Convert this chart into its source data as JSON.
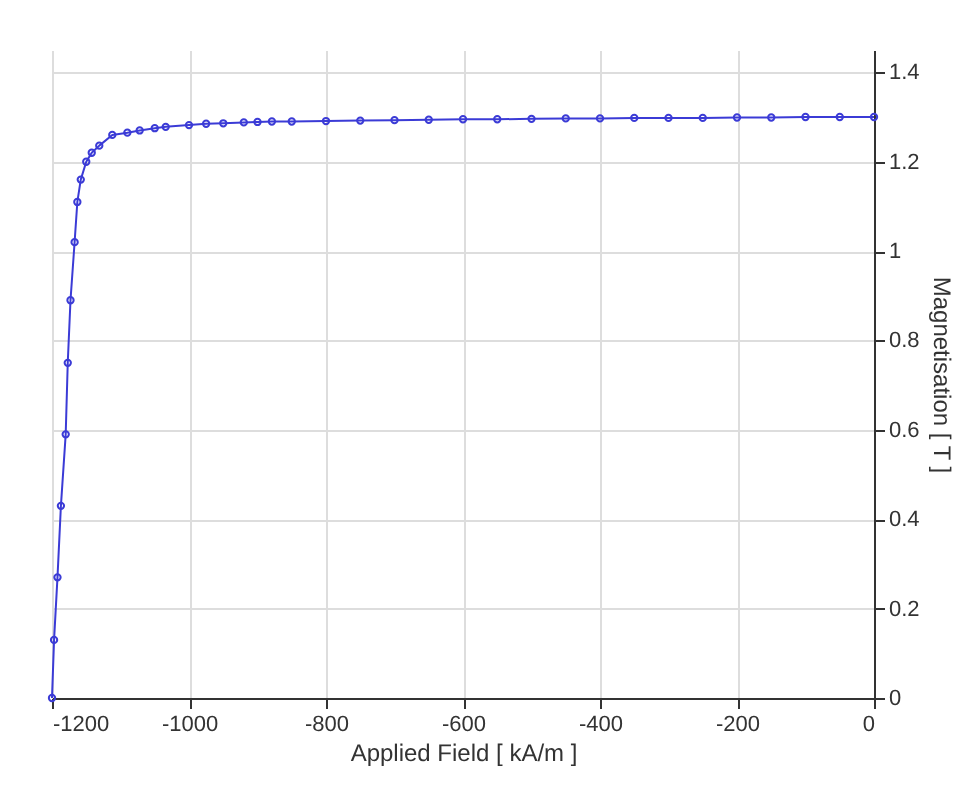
{
  "chart_data": {
    "type": "line",
    "xlabel": "Applied Field [ kA/m ]",
    "ylabel": "Magnetisation [ T ]",
    "series": [
      {
        "color": "#3b3bd6",
        "x": [
          -1200,
          -1197,
          -1192,
          -1187,
          -1180,
          -1177,
          -1173,
          -1167,
          -1163,
          -1158,
          -1150,
          -1142,
          -1131,
          -1112,
          -1090,
          -1072,
          -1050,
          -1034,
          -1000,
          -975,
          -950,
          -920,
          -900,
          -879,
          -850,
          -800,
          -750,
          -700,
          -650,
          -600,
          -550,
          -500,
          -450,
          -400,
          -350,
          -300,
          -250,
          -200,
          -150,
          -100,
          -50,
          0
        ],
        "values": [
          0,
          0.13,
          0.27,
          0.43,
          0.59,
          0.75,
          0.89,
          1.02,
          1.11,
          1.16,
          1.2,
          1.22,
          1.236,
          1.26,
          1.265,
          1.27,
          1.275,
          1.278,
          1.282,
          1.285,
          1.286,
          1.288,
          1.289,
          1.29,
          1.29,
          1.291,
          1.292,
          1.293,
          1.294,
          1.295,
          1.295,
          1.296,
          1.297,
          1.297,
          1.298,
          1.298,
          1.298,
          1.299,
          1.299,
          1.3,
          1.3,
          1.3
        ]
      }
    ],
    "xlim": [
      -1200,
      0
    ],
    "xticks": [
      -1200,
      -1000,
      -800,
      -600,
      -400,
      -200,
      0
    ],
    "ylim": [
      0,
      1.45
    ],
    "yticks": [
      0,
      0.2,
      0.4,
      0.6,
      0.8,
      1,
      1.2,
      1.4
    ],
    "grid": true,
    "marker": "circle",
    "line_style": "solid"
  }
}
